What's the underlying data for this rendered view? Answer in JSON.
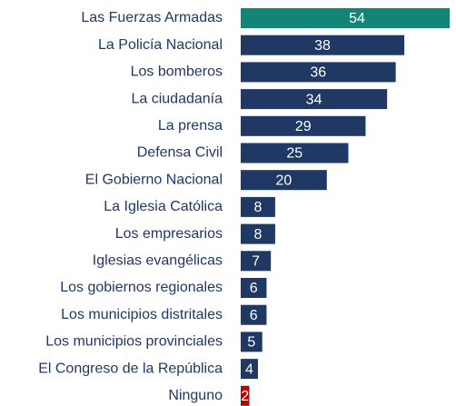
{
  "chart_data": {
    "type": "bar",
    "orientation": "horizontal",
    "categories": [
      "Las Fuerzas Armadas",
      "La Policía Nacional",
      "Los bomberos",
      "La ciudadanía",
      "La prensa",
      "Defensa Civil",
      "El Gobierno Nacional",
      "La Iglesia Católica",
      "Los empresarios",
      "Iglesias evangélicas",
      "Los gobiernos regionales",
      "Los municipios distritales",
      "Los municipios provinciales",
      "El Congreso de la República",
      "Ninguno"
    ],
    "values": [
      54,
      38,
      36,
      34,
      29,
      25,
      20,
      8,
      8,
      7,
      6,
      6,
      5,
      4,
      2
    ],
    "colors": [
      "#138577",
      "#1f3864",
      "#1f3864",
      "#1f3864",
      "#1f3864",
      "#1f3864",
      "#1f3864",
      "#1f3864",
      "#1f3864",
      "#1f3864",
      "#1f3864",
      "#1f3864",
      "#1f3864",
      "#1f3864",
      "#c00000"
    ]
  }
}
